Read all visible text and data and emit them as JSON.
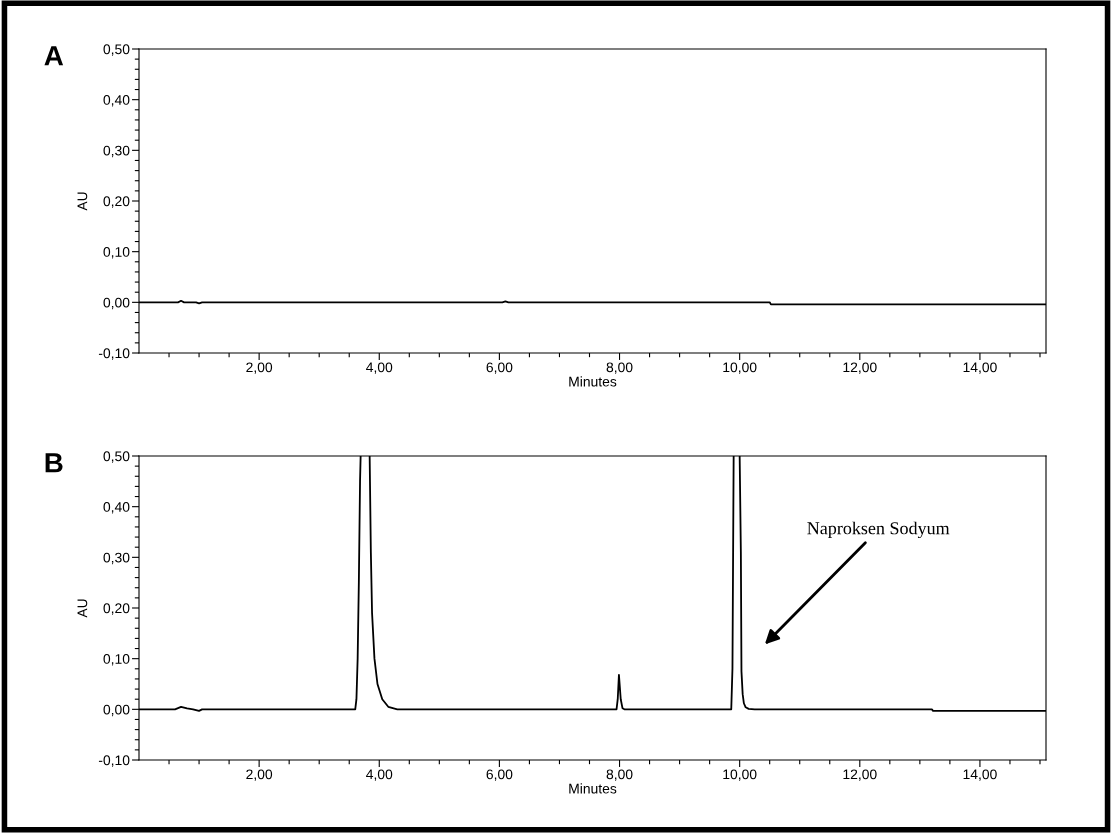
{
  "chart_data": [
    {
      "type": "line",
      "title": "A",
      "xlabel": "Minutes",
      "ylabel": "AU",
      "xlim": [
        0,
        15.1
      ],
      "ylim": [
        -0.1,
        0.5
      ],
      "xticks": [
        {
          "value": 0.5,
          "label": null
        },
        {
          "value": 1,
          "label": null
        },
        {
          "value": 1.5,
          "label": null
        },
        {
          "value": 2,
          "label": "2,00"
        },
        {
          "value": 2.5,
          "label": null
        },
        {
          "value": 3,
          "label": null
        },
        {
          "value": 3.5,
          "label": null
        },
        {
          "value": 4,
          "label": "4,00"
        },
        {
          "value": 4.5,
          "label": null
        },
        {
          "value": 5,
          "label": null
        },
        {
          "value": 5.5,
          "label": null
        },
        {
          "value": 6,
          "label": "6,00"
        },
        {
          "value": 6.5,
          "label": null
        },
        {
          "value": 7,
          "label": null
        },
        {
          "value": 7.5,
          "label": null
        },
        {
          "value": 8,
          "label": "8,00"
        },
        {
          "value": 8.5,
          "label": null
        },
        {
          "value": 9,
          "label": null
        },
        {
          "value": 9.5,
          "label": null
        },
        {
          "value": 10,
          "label": "10,00"
        },
        {
          "value": 10.5,
          "label": null
        },
        {
          "value": 11,
          "label": null
        },
        {
          "value": 11.5,
          "label": null
        },
        {
          "value": 12,
          "label": "12,00"
        },
        {
          "value": 12.5,
          "label": null
        },
        {
          "value": 13,
          "label": null
        },
        {
          "value": 13.5,
          "label": null
        },
        {
          "value": 14,
          "label": "14,00"
        },
        {
          "value": 14.5,
          "label": null
        },
        {
          "value": 15,
          "label": null
        }
      ],
      "yticks": [
        {
          "value": -0.1,
          "label": "-0,10"
        },
        {
          "value": -0.08,
          "label": null
        },
        {
          "value": -0.06,
          "label": null
        },
        {
          "value": -0.04,
          "label": null
        },
        {
          "value": -0.02,
          "label": null
        },
        {
          "value": 0,
          "label": "0,00"
        },
        {
          "value": 0.02,
          "label": null
        },
        {
          "value": 0.04,
          "label": null
        },
        {
          "value": 0.06,
          "label": null
        },
        {
          "value": 0.08,
          "label": null
        },
        {
          "value": 0.1,
          "label": "0,10"
        },
        {
          "value": 0.12,
          "label": null
        },
        {
          "value": 0.14,
          "label": null
        },
        {
          "value": 0.16,
          "label": null
        },
        {
          "value": 0.18,
          "label": null
        },
        {
          "value": 0.2,
          "label": "0,20"
        },
        {
          "value": 0.22,
          "label": null
        },
        {
          "value": 0.24,
          "label": null
        },
        {
          "value": 0.26,
          "label": null
        },
        {
          "value": 0.28,
          "label": null
        },
        {
          "value": 0.3,
          "label": "0,30"
        },
        {
          "value": 0.32,
          "label": null
        },
        {
          "value": 0.34,
          "label": null
        },
        {
          "value": 0.36,
          "label": null
        },
        {
          "value": 0.38,
          "label": null
        },
        {
          "value": 0.4,
          "label": "0,40"
        },
        {
          "value": 0.42,
          "label": null
        },
        {
          "value": 0.44,
          "label": null
        },
        {
          "value": 0.46,
          "label": null
        },
        {
          "value": 0.48,
          "label": null
        },
        {
          "value": 0.5,
          "label": "0,50"
        }
      ],
      "series": [
        {
          "color": "#000000",
          "x": [
            0,
            0.65,
            0.7,
            0.75,
            0.95,
            1.0,
            1.05,
            6.05,
            6.1,
            6.15,
            10.5,
            10.52,
            15.1
          ],
          "values": [
            0,
            0,
            0.003,
            0,
            0,
            -0.002,
            0,
            0,
            0.002,
            0,
            0,
            -0.004,
            -0.004
          ]
        }
      ]
    },
    {
      "type": "line",
      "title": "B",
      "xlabel": "Minutes",
      "ylabel": "AU",
      "xlim": [
        0,
        15.1
      ],
      "ylim": [
        -0.1,
        0.5
      ],
      "xticks": [
        {
          "value": 0.5,
          "label": null
        },
        {
          "value": 1,
          "label": null
        },
        {
          "value": 1.5,
          "label": null
        },
        {
          "value": 2,
          "label": "2,00"
        },
        {
          "value": 2.5,
          "label": null
        },
        {
          "value": 3,
          "label": null
        },
        {
          "value": 3.5,
          "label": null
        },
        {
          "value": 4,
          "label": "4,00"
        },
        {
          "value": 4.5,
          "label": null
        },
        {
          "value": 5,
          "label": null
        },
        {
          "value": 5.5,
          "label": null
        },
        {
          "value": 6,
          "label": "6,00"
        },
        {
          "value": 6.5,
          "label": null
        },
        {
          "value": 7,
          "label": null
        },
        {
          "value": 7.5,
          "label": null
        },
        {
          "value": 8,
          "label": "8,00"
        },
        {
          "value": 8.5,
          "label": null
        },
        {
          "value": 9,
          "label": null
        },
        {
          "value": 9.5,
          "label": null
        },
        {
          "value": 10,
          "label": "10,00"
        },
        {
          "value": 10.5,
          "label": null
        },
        {
          "value": 11,
          "label": null
        },
        {
          "value": 11.5,
          "label": null
        },
        {
          "value": 12,
          "label": "12,00"
        },
        {
          "value": 12.5,
          "label": null
        },
        {
          "value": 13,
          "label": null
        },
        {
          "value": 13.5,
          "label": null
        },
        {
          "value": 14,
          "label": "14,00"
        },
        {
          "value": 14.5,
          "label": null
        },
        {
          "value": 15,
          "label": null
        }
      ],
      "yticks": [
        {
          "value": -0.1,
          "label": "-0,10"
        },
        {
          "value": -0.08,
          "label": null
        },
        {
          "value": -0.06,
          "label": null
        },
        {
          "value": -0.04,
          "label": null
        },
        {
          "value": -0.02,
          "label": null
        },
        {
          "value": 0,
          "label": "0,00"
        },
        {
          "value": 0.02,
          "label": null
        },
        {
          "value": 0.04,
          "label": null
        },
        {
          "value": 0.06,
          "label": null
        },
        {
          "value": 0.08,
          "label": null
        },
        {
          "value": 0.1,
          "label": "0,10"
        },
        {
          "value": 0.12,
          "label": null
        },
        {
          "value": 0.14,
          "label": null
        },
        {
          "value": 0.16,
          "label": null
        },
        {
          "value": 0.18,
          "label": null
        },
        {
          "value": 0.2,
          "label": "0,20"
        },
        {
          "value": 0.22,
          "label": null
        },
        {
          "value": 0.24,
          "label": null
        },
        {
          "value": 0.26,
          "label": null
        },
        {
          "value": 0.28,
          "label": null
        },
        {
          "value": 0.3,
          "label": "0,30"
        },
        {
          "value": 0.32,
          "label": null
        },
        {
          "value": 0.34,
          "label": null
        },
        {
          "value": 0.36,
          "label": null
        },
        {
          "value": 0.38,
          "label": null
        },
        {
          "value": 0.4,
          "label": "0,40"
        },
        {
          "value": 0.42,
          "label": null
        },
        {
          "value": 0.44,
          "label": null
        },
        {
          "value": 0.46,
          "label": null
        },
        {
          "value": 0.48,
          "label": null
        },
        {
          "value": 0.5,
          "label": "0,50"
        }
      ],
      "annotations": [
        "Naproksen Sodyum"
      ],
      "series": [
        {
          "color": "#000000",
          "x": [
            0,
            0.6,
            0.7,
            0.8,
            0.9,
            1.0,
            1.05,
            3.6,
            3.62,
            3.64,
            3.66,
            3.68,
            3.69,
            3.82,
            3.84,
            3.86,
            3.88,
            3.92,
            3.97,
            4.05,
            4.15,
            4.3,
            7.92,
            7.95,
            7.97,
            7.99,
            8.02,
            8.05,
            8.08,
            9.86,
            9.88,
            9.9,
            9.91,
            10.0,
            10.02,
            10.03,
            10.05,
            10.07,
            10.1,
            10.15,
            10.25,
            13.2,
            13.22,
            15.1
          ],
          "values": [
            0,
            0,
            0.005,
            0.002,
            0,
            -0.003,
            0,
            0,
            0.02,
            0.1,
            0.25,
            0.45,
            0.5,
            null,
            0.5,
            0.31,
            0.19,
            0.1,
            0.05,
            0.02,
            0.005,
            0,
            0,
            0,
            0.02,
            0.068,
            0.02,
            0.002,
            0,
            0,
            0.08,
            0.5,
            null,
            0.5,
            0.31,
            0.075,
            0.03,
            0.012,
            0.004,
            0.001,
            0,
            0,
            -0.003,
            -0.003
          ]
        }
      ]
    }
  ]
}
